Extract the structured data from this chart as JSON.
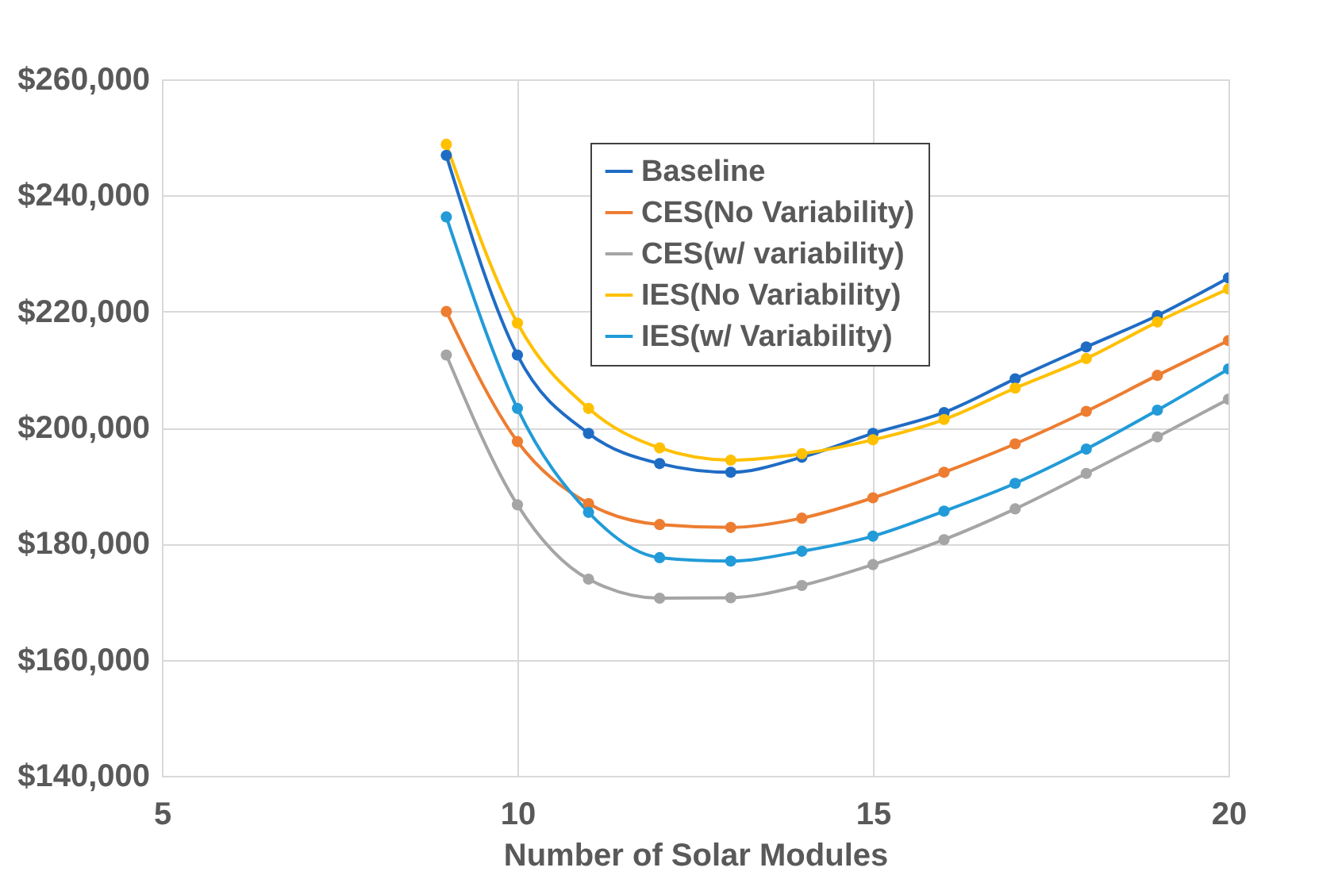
{
  "chart_data": {
    "type": "line",
    "xlabel": "Number of Solar Modules",
    "x": [
      9,
      10,
      11,
      12,
      13,
      14,
      15,
      16,
      17,
      18,
      19,
      20
    ],
    "series": [
      {
        "name": "Baseline",
        "color": "#1f6cc4",
        "values": [
          246900,
          212500,
          199000,
          193800,
          192300,
          194900,
          199000,
          202600,
          208400,
          213900,
          219300,
          225800
        ]
      },
      {
        "name": "CES(No Variability)",
        "color": "#ed7d31",
        "values": [
          220000,
          197600,
          186900,
          183300,
          182800,
          184400,
          187900,
          192300,
          197200,
          202800,
          209000,
          215000
        ]
      },
      {
        "name": "CES(w/ variability)",
        "color": "#a5a5a5",
        "values": [
          212500,
          186700,
          173900,
          170600,
          170700,
          172800,
          176400,
          180700,
          186000,
          192100,
          198400,
          204900
        ]
      },
      {
        "name": "IES(No Variability)",
        "color": "#ffc000",
        "values": [
          248800,
          218000,
          203300,
          196500,
          194400,
          195500,
          197900,
          201400,
          206800,
          211900,
          218200,
          223900
        ]
      },
      {
        "name": "IES(w/ Variability)",
        "color": "#229bd8",
        "values": [
          236300,
          203300,
          185400,
          177600,
          177000,
          178700,
          181300,
          185600,
          190400,
          196300,
          203000,
          210100
        ]
      }
    ],
    "xlim": [
      5,
      20
    ],
    "xticks": [
      5,
      10,
      15,
      20
    ],
    "ylim": [
      140000,
      260000
    ],
    "yticks": [
      {
        "value": 140000,
        "label": "$140,000"
      },
      {
        "value": 160000,
        "label": "$160,000"
      },
      {
        "value": 180000,
        "label": "$180,000"
      },
      {
        "value": 200000,
        "label": "$200,000"
      },
      {
        "value": 220000,
        "label": "$220,000"
      },
      {
        "value": 240000,
        "label": "$240,000"
      },
      {
        "value": 260000,
        "label": "$260,000"
      }
    ],
    "grid": true,
    "legend": "top right",
    "marker": "circle",
    "line_style": "solid"
  }
}
